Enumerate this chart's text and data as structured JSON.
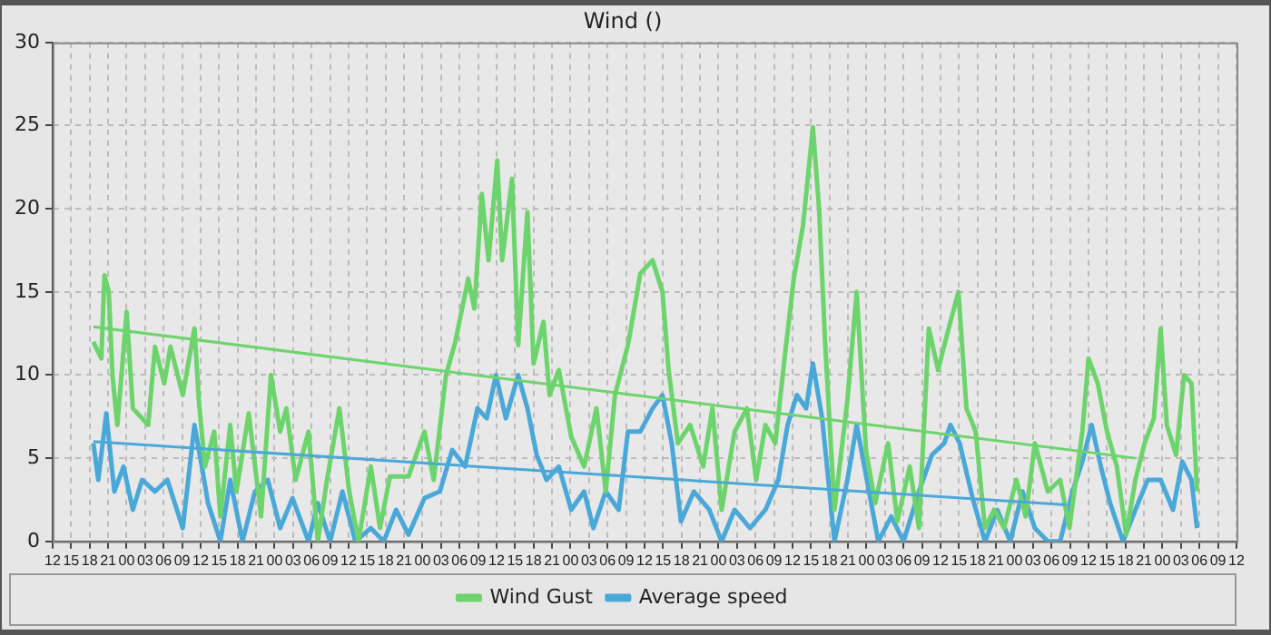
{
  "chart_data": {
    "type": "line",
    "title": "Wind ()",
    "xlim": [
      12,
      204
    ],
    "ylim": [
      0,
      30
    ],
    "yticks": [
      0,
      5,
      10,
      15,
      20,
      25,
      30
    ],
    "xticks": [
      {
        "value": 12,
        "label": "12"
      },
      {
        "value": 15,
        "label": "15"
      },
      {
        "value": 18,
        "label": "18"
      },
      {
        "value": 21,
        "label": "21"
      },
      {
        "value": 24,
        "label": "00"
      },
      {
        "value": 27,
        "label": "03"
      },
      {
        "value": 30,
        "label": "06"
      },
      {
        "value": 33,
        "label": "09"
      },
      {
        "value": 36,
        "label": "12"
      },
      {
        "value": 39,
        "label": "15"
      },
      {
        "value": 42,
        "label": "18"
      },
      {
        "value": 45,
        "label": "21"
      },
      {
        "value": 48,
        "label": "00"
      },
      {
        "value": 51,
        "label": "03"
      },
      {
        "value": 54,
        "label": "06"
      },
      {
        "value": 57,
        "label": "09"
      },
      {
        "value": 60,
        "label": "12"
      },
      {
        "value": 63,
        "label": "15"
      },
      {
        "value": 66,
        "label": "18"
      },
      {
        "value": 69,
        "label": "21"
      },
      {
        "value": 72,
        "label": "00"
      },
      {
        "value": 75,
        "label": "03"
      },
      {
        "value": 78,
        "label": "06"
      },
      {
        "value": 81,
        "label": "09"
      },
      {
        "value": 84,
        "label": "12"
      },
      {
        "value": 87,
        "label": "15"
      },
      {
        "value": 90,
        "label": "18"
      },
      {
        "value": 93,
        "label": "21"
      },
      {
        "value": 96,
        "label": "00"
      },
      {
        "value": 99,
        "label": "03"
      },
      {
        "value": 102,
        "label": "06"
      },
      {
        "value": 105,
        "label": "09"
      },
      {
        "value": 108,
        "label": "12"
      },
      {
        "value": 111,
        "label": "15"
      },
      {
        "value": 114,
        "label": "18"
      },
      {
        "value": 117,
        "label": "21"
      },
      {
        "value": 120,
        "label": "00"
      },
      {
        "value": 123,
        "label": "03"
      },
      {
        "value": 126,
        "label": "06"
      },
      {
        "value": 129,
        "label": "09"
      },
      {
        "value": 132,
        "label": "12"
      },
      {
        "value": 135,
        "label": "15"
      },
      {
        "value": 138,
        "label": "18"
      },
      {
        "value": 141,
        "label": "21"
      },
      {
        "value": 144,
        "label": "00"
      },
      {
        "value": 147,
        "label": "03"
      },
      {
        "value": 150,
        "label": "06"
      },
      {
        "value": 153,
        "label": "09"
      },
      {
        "value": 156,
        "label": "12"
      },
      {
        "value": 159,
        "label": "15"
      },
      {
        "value": 162,
        "label": "18"
      },
      {
        "value": 165,
        "label": "21"
      },
      {
        "value": 168,
        "label": "00"
      },
      {
        "value": 171,
        "label": "03"
      },
      {
        "value": 174,
        "label": "06"
      },
      {
        "value": 177,
        "label": "09"
      },
      {
        "value": 180,
        "label": "12"
      },
      {
        "value": 183,
        "label": "15"
      },
      {
        "value": 186,
        "label": "18"
      },
      {
        "value": 189,
        "label": "21"
      },
      {
        "value": 192,
        "label": "00"
      },
      {
        "value": 195,
        "label": "03"
      },
      {
        "value": 198,
        "label": "06"
      },
      {
        "value": 201,
        "label": "09"
      },
      {
        "value": 204,
        "label": "12"
      }
    ],
    "grid": true,
    "legend": "bottom",
    "marker": "none",
    "line_style": "solid",
    "series": [
      {
        "name": "Wind Gust",
        "color": "#6dd46d",
        "type": "line",
        "x": [
          18.6,
          19.9,
          20.4,
          21.1,
          21.7,
          22.5,
          24.0,
          25.0,
          27.5,
          28.6,
          30.1,
          31.1,
          33.1,
          35.0,
          35.7,
          36.7,
          38.2,
          39.2,
          40.8,
          41.8,
          43.8,
          45.8,
          47.4,
          48.9,
          49.9,
          51.4,
          53.5,
          55.0,
          56.5,
          58.5,
          60.1,
          61.6,
          63.6,
          65.1,
          66.7,
          69.7,
          72.3,
          73.8,
          75.8,
          77.3,
          79.4,
          80.4,
          81.6,
          82.7,
          84.1,
          84.9,
          86.5,
          87.5,
          89.0,
          90.0,
          91.6,
          92.6,
          94.1,
          96.1,
          98.2,
          100.2,
          101.7,
          103.2,
          105.3,
          106.8,
          107.3,
          109.3,
          110.9,
          111.9,
          113.4,
          115.4,
          117.5,
          119.0,
          120.5,
          122.6,
          124.6,
          126.1,
          127.6,
          129.2,
          130.7,
          132.2,
          133.7,
          135.3,
          136.3,
          137.3,
          138.8,
          140.9,
          142.4,
          143.9,
          145.4,
          147.5,
          149.0,
          151.0,
          152.5,
          154.1,
          155.6,
          157.1,
          158.9,
          160.2,
          161.7,
          163.2,
          164.7,
          166.3,
          168.3,
          169.8,
          171.3,
          173.4,
          175.4,
          176.9,
          179.0,
          180.0,
          181.5,
          183.0,
          184.6,
          186.1,
          187.6,
          189.1,
          190.6,
          191.7,
          192.7,
          194.2,
          195.5,
          196.7,
          197.6
        ],
        "values": [
          12,
          11,
          16,
          15,
          10,
          7,
          13.8,
          8,
          7,
          11.7,
          9.5,
          11.7,
          8.8,
          12.8,
          8.5,
          4.5,
          6.6,
          1.5,
          7,
          3,
          7.7,
          1.5,
          10,
          6.6,
          8,
          3.7,
          6.6,
          0,
          3.7,
          8,
          3,
          0,
          4.5,
          0.8,
          3.9,
          3.9,
          6.6,
          3.7,
          10,
          12,
          15.8,
          14,
          20.9,
          16.9,
          22.9,
          16.9,
          21.8,
          11.8,
          19.8,
          10.7,
          13.2,
          8.8,
          10.3,
          6.3,
          4.5,
          8,
          3,
          8.8,
          11.8,
          15,
          16.1,
          16.9,
          15,
          10.3,
          5.9,
          7,
          4.5,
          8,
          1.9,
          6.6,
          8,
          3.7,
          7,
          5.9,
          11,
          15.8,
          19,
          24.9,
          20,
          11.8,
          1.9,
          8.5,
          15,
          5.5,
          2.3,
          5.9,
          1.2,
          4.5,
          0.8,
          12.8,
          10.3,
          12.5,
          15,
          8,
          6.6,
          0.8,
          1.9,
          0.8,
          3.7,
          1.5,
          5.9,
          3,
          3.7,
          0.8,
          6.6,
          11,
          9.5,
          6.6,
          4.5,
          0.4,
          3.7,
          5.9,
          7.4,
          12.8,
          7,
          5.2,
          10,
          9.5,
          3
        ]
      },
      {
        "name": "Average speed",
        "color": "#4aa8d8",
        "type": "line",
        "x": [
          18.6,
          19.4,
          20.7,
          22.0,
          23.5,
          25.0,
          26.5,
          28.6,
          30.6,
          33.1,
          35.0,
          36.2,
          37.2,
          39.2,
          40.8,
          42.8,
          44.8,
          46.9,
          48.9,
          50.9,
          53.5,
          55.0,
          57.0,
          59.0,
          61.1,
          63.6,
          65.7,
          67.7,
          69.7,
          72.3,
          74.8,
          76.8,
          78.9,
          80.9,
          82.4,
          83.9,
          85.5,
          87.5,
          89.0,
          90.5,
          92.1,
          94.1,
          96.1,
          98.2,
          99.7,
          101.7,
          103.8,
          105.3,
          107.3,
          109.3,
          110.9,
          112.4,
          113.9,
          116.0,
          118.5,
          120.5,
          122.6,
          125.1,
          127.6,
          129.7,
          131.2,
          132.7,
          134.2,
          135.3,
          136.8,
          138.8,
          140.9,
          142.4,
          144.4,
          145.9,
          148.0,
          150.0,
          152.5,
          154.6,
          156.6,
          157.6,
          159.1,
          161.2,
          163.2,
          165.2,
          167.3,
          169.3,
          171.3,
          173.4,
          175.4,
          177.4,
          179.0,
          180.5,
          182.0,
          183.5,
          185.6,
          187.6,
          189.6,
          191.7,
          193.7,
          195.2,
          196.7,
          197.6
        ],
        "values": [
          5.9,
          3.7,
          7.7,
          3,
          4.5,
          1.9,
          3.7,
          3,
          3.7,
          0.8,
          7,
          4.5,
          2.3,
          0,
          3.7,
          0,
          3,
          3.7,
          0.8,
          2.6,
          0,
          2.3,
          0,
          3,
          0,
          0.8,
          0,
          1.9,
          0.4,
          2.6,
          3,
          5.5,
          4.5,
          8,
          7.4,
          10,
          7.4,
          10,
          8,
          5.2,
          3.7,
          4.5,
          1.9,
          3,
          0.8,
          3,
          1.9,
          6.6,
          6.6,
          8,
          8.8,
          5.9,
          1.2,
          3,
          1.9,
          0,
          1.9,
          0.8,
          1.9,
          3.7,
          7,
          8.8,
          8,
          10.7,
          7.4,
          0,
          3.7,
          7,
          3,
          0,
          1.5,
          0,
          3,
          5.2,
          5.9,
          7,
          5.9,
          2.6,
          0,
          1.9,
          0,
          3,
          0.8,
          0,
          0,
          3,
          4.8,
          7,
          4.5,
          2.3,
          0,
          1.9,
          3.7,
          3.7,
          1.9,
          4.8,
          3.7,
          0.8
        ]
      },
      {
        "color": "#6dd46d",
        "type": "line",
        "x": [
          18.6,
          187.6
        ],
        "values": [
          12.9,
          5.0
        ]
      },
      {
        "color": "#4aa8d8",
        "type": "line",
        "x": [
          18.6,
          176.4
        ],
        "values": [
          6.0,
          2.2
        ]
      }
    ]
  }
}
